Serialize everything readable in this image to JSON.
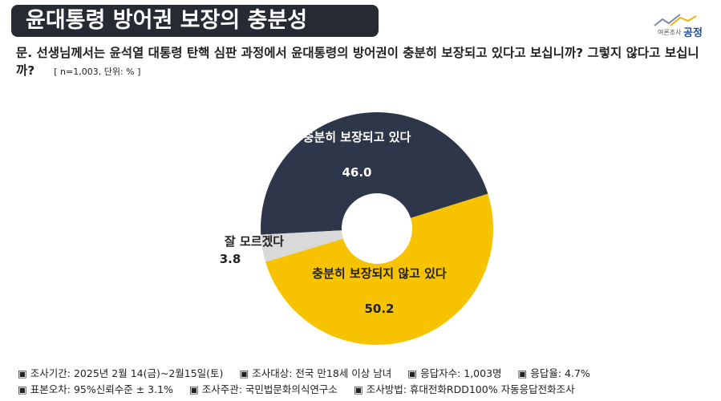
{
  "header": {
    "title": "윤대통령 방어권 보장의 충분성"
  },
  "logo": {
    "small": "여론조사",
    "main": "공정"
  },
  "question": {
    "text": "문. 선생님께서는 윤석열 대통령 탄핵 심판 과정에서 윤대통령의 방어권이 충분히 보장되고 있다고 보십니까? 그렇지 않다고 보십니까?",
    "note": "[ n=1,003, 단위: % ]"
  },
  "chart_data": {
    "type": "donut",
    "categories": [
      "충분히 보장되고 있다",
      "충분히 보장되지 않고 있다",
      "잘 모르겠다"
    ],
    "values": [
      46.0,
      50.2,
      3.8
    ],
    "value_labels": [
      "46.0",
      "50.2",
      "3.8"
    ],
    "colors": [
      "#2e3649",
      "#f7c300",
      "#d9d9d9"
    ]
  },
  "footer": {
    "rows": [
      [
        "조사기간: 2025년 2월 14(금)~2월15일(토)",
        "조사대상: 전국 만18세 이상 남녀",
        "응답자수: 1,003명",
        "응답율: 4.7%"
      ],
      [
        "표본오차: 95%신뢰수준 ± 3.1%",
        "조사주관: 국민법문화의식연구소",
        "조사방법: 휴대전화RDD100% 자동응답전화조사"
      ]
    ]
  }
}
